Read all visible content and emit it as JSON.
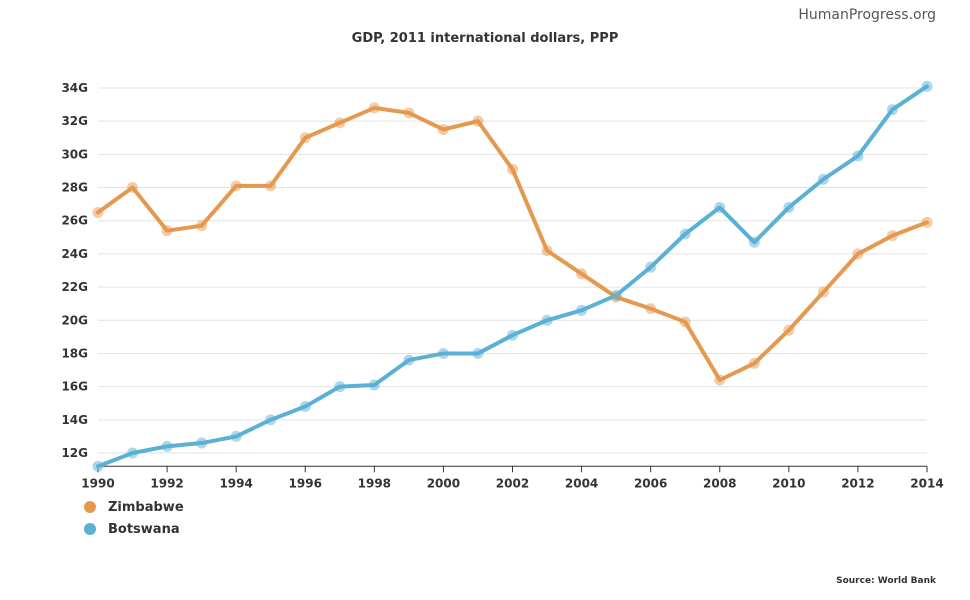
{
  "brand": "HumanProgress.org",
  "source": "Source: World Bank",
  "colors": {
    "zimbabwe": "#E5994F",
    "botswana": "#5BB0D5",
    "grid": "#e2e2e2",
    "axis": "#333333"
  },
  "chart_data": {
    "type": "line",
    "title": "GDP, 2011 international dollars, PPP",
    "xlabel": "",
    "ylabel": "",
    "x": [
      1990,
      1991,
      1992,
      1993,
      1994,
      1995,
      1996,
      1997,
      1998,
      1999,
      2000,
      2001,
      2002,
      2003,
      2004,
      2005,
      2006,
      2007,
      2008,
      2009,
      2010,
      2011,
      2012,
      2013,
      2014
    ],
    "xticks": [
      "1990",
      "1992",
      "1994",
      "1996",
      "1998",
      "2000",
      "2002",
      "2004",
      "2006",
      "2008",
      "2010",
      "2012",
      "2014"
    ],
    "yticks": [
      "12G",
      "14G",
      "16G",
      "18G",
      "20G",
      "22G",
      "24G",
      "26G",
      "28G",
      "30G",
      "32G",
      "34G"
    ],
    "ylim": [
      11.2,
      35.0
    ],
    "grid": true,
    "legend_position": "bottom-left",
    "series": [
      {
        "name": "Zimbabwe",
        "color": "#E5994F",
        "values": [
          26.5,
          28.0,
          25.4,
          25.7,
          28.1,
          28.1,
          31.0,
          31.9,
          32.8,
          32.5,
          31.5,
          32.0,
          29.1,
          24.2,
          22.8,
          21.4,
          20.7,
          19.9,
          16.4,
          17.4,
          19.4,
          21.7,
          24.0,
          25.1,
          25.9
        ]
      },
      {
        "name": "Botswana",
        "color": "#5BB0D5",
        "values": [
          11.2,
          12.0,
          12.4,
          12.6,
          13.0,
          14.0,
          14.8,
          16.0,
          16.1,
          17.6,
          18.0,
          18.0,
          19.1,
          20.0,
          20.6,
          21.5,
          23.2,
          25.2,
          26.8,
          24.7,
          26.8,
          28.5,
          29.9,
          32.7,
          34.1
        ]
      }
    ]
  }
}
